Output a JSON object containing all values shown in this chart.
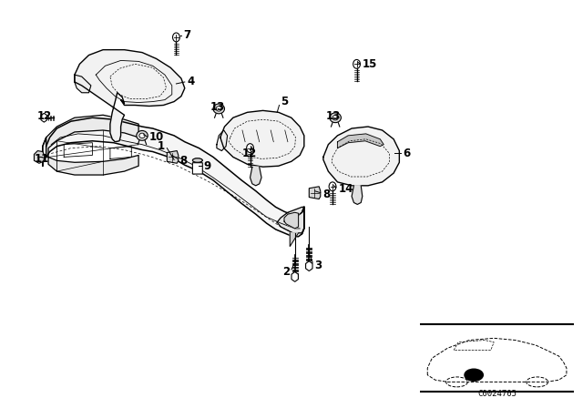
{
  "background_color": "#ffffff",
  "watermark": "C0024705",
  "fig_width": 6.4,
  "fig_height": 4.48,
  "label_fontsize": 8.5,
  "bold_fontsize": 9.5
}
